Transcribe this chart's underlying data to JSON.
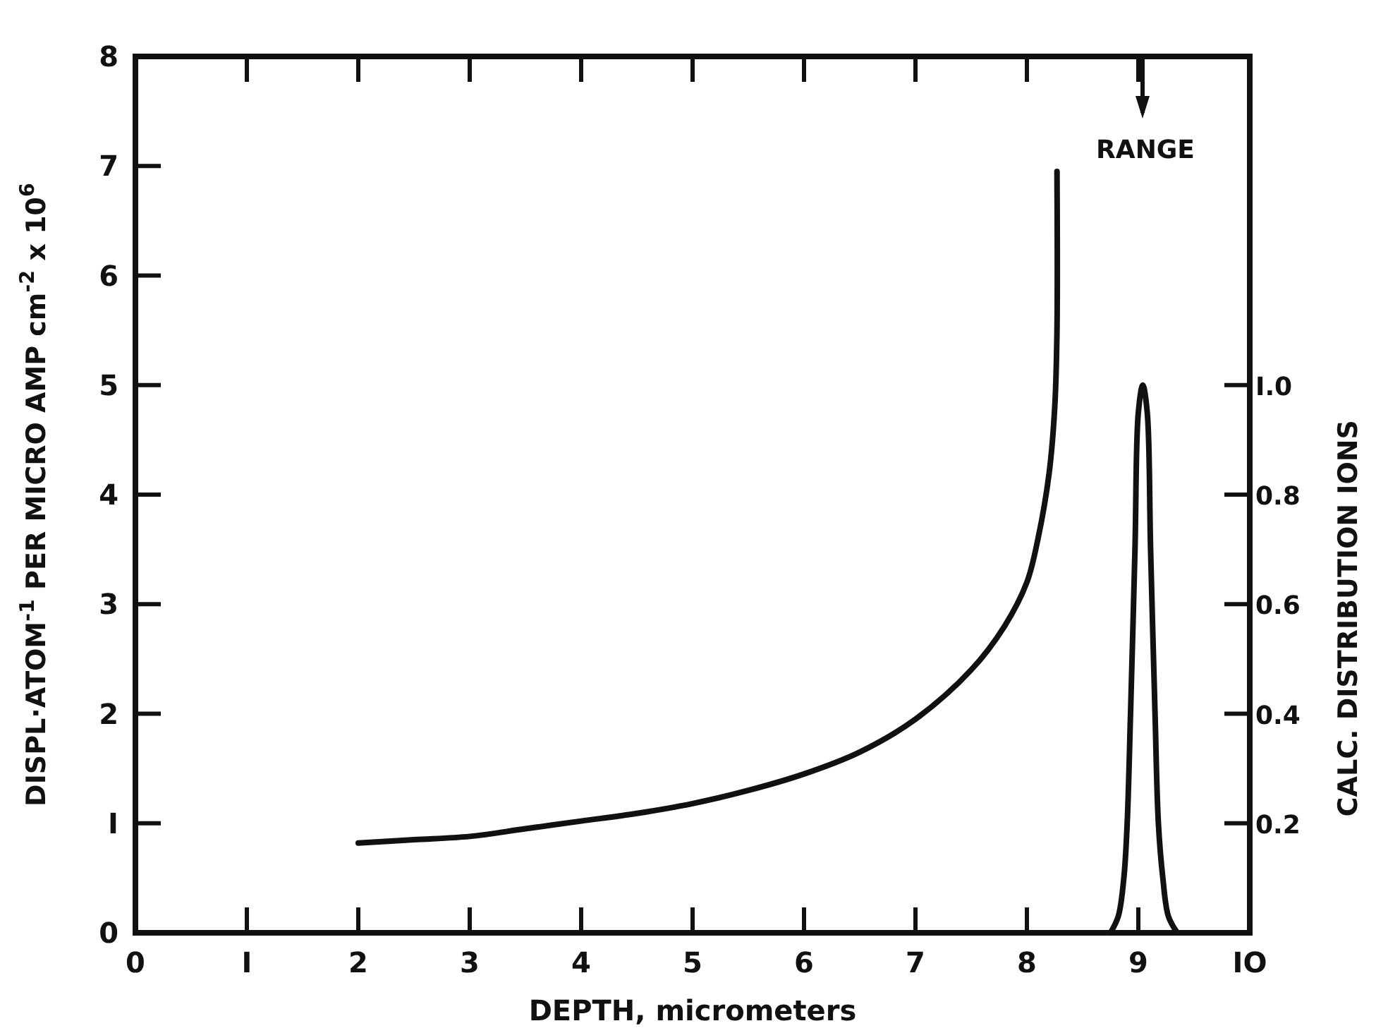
{
  "chart_data": {
    "type": "line",
    "xlabel": "DEPTH, micrometers",
    "ylabel": "DISPL·ATOM$^{-1}$ PER MICRO AMP cm$^{-2}$ x 10$^{6}$",
    "y2label": "CALC. DISTRIBUTION IONS",
    "xlim": [
      0,
      10
    ],
    "xticks": [
      0,
      {
        "value": 1,
        "label": "I"
      },
      2,
      3,
      4,
      5,
      6,
      7,
      8,
      9,
      {
        "value": 10,
        "label": "IO"
      }
    ],
    "ylim": [
      0,
      8
    ],
    "yticks": [
      0,
      {
        "value": 1,
        "label": "I"
      },
      2,
      3,
      4,
      5,
      6,
      7,
      8
    ],
    "y2lim": [
      0,
      1.6
    ],
    "y2ticks": [
      {
        "value": 0.2,
        "label": "0.2"
      },
      {
        "value": 0.4,
        "label": "0.4"
      },
      {
        "value": 0.6,
        "label": "0.6"
      },
      {
        "value": 0.8,
        "label": "0.8"
      },
      {
        "value": 1.0,
        "label": "I.0"
      }
    ],
    "series": [
      {
        "color": "#111111",
        "x": [
          2,
          2.5,
          3,
          3.5,
          4,
          4.5,
          5,
          5.5,
          6,
          6.5,
          7,
          7.5,
          7.8,
          8,
          8.1,
          8.2,
          8.25,
          8.27,
          8.27
        ],
        "values": [
          0.82,
          0.85,
          0.88,
          0.95,
          1.02,
          1.09,
          1.18,
          1.3,
          1.45,
          1.65,
          1.95,
          2.4,
          2.8,
          3.2,
          3.6,
          4.2,
          4.8,
          5.5,
          6.95
        ]
      },
      {
        "color": "#111111",
        "axis": "y2",
        "x": [
          8.75,
          8.82,
          8.87,
          8.9,
          8.93,
          8.97,
          9.0,
          9.04,
          9.08,
          9.11,
          9.15,
          9.18,
          9.22,
          9.27,
          9.35
        ],
        "values": [
          0,
          0.03,
          0.1,
          0.2,
          0.4,
          0.7,
          0.95,
          1.0,
          0.95,
          0.7,
          0.4,
          0.2,
          0.1,
          0.03,
          0
        ]
      }
    ],
    "annotations": [
      "RANGE"
    ],
    "grid": false,
    "marker": "none",
    "line_style": "solid"
  }
}
